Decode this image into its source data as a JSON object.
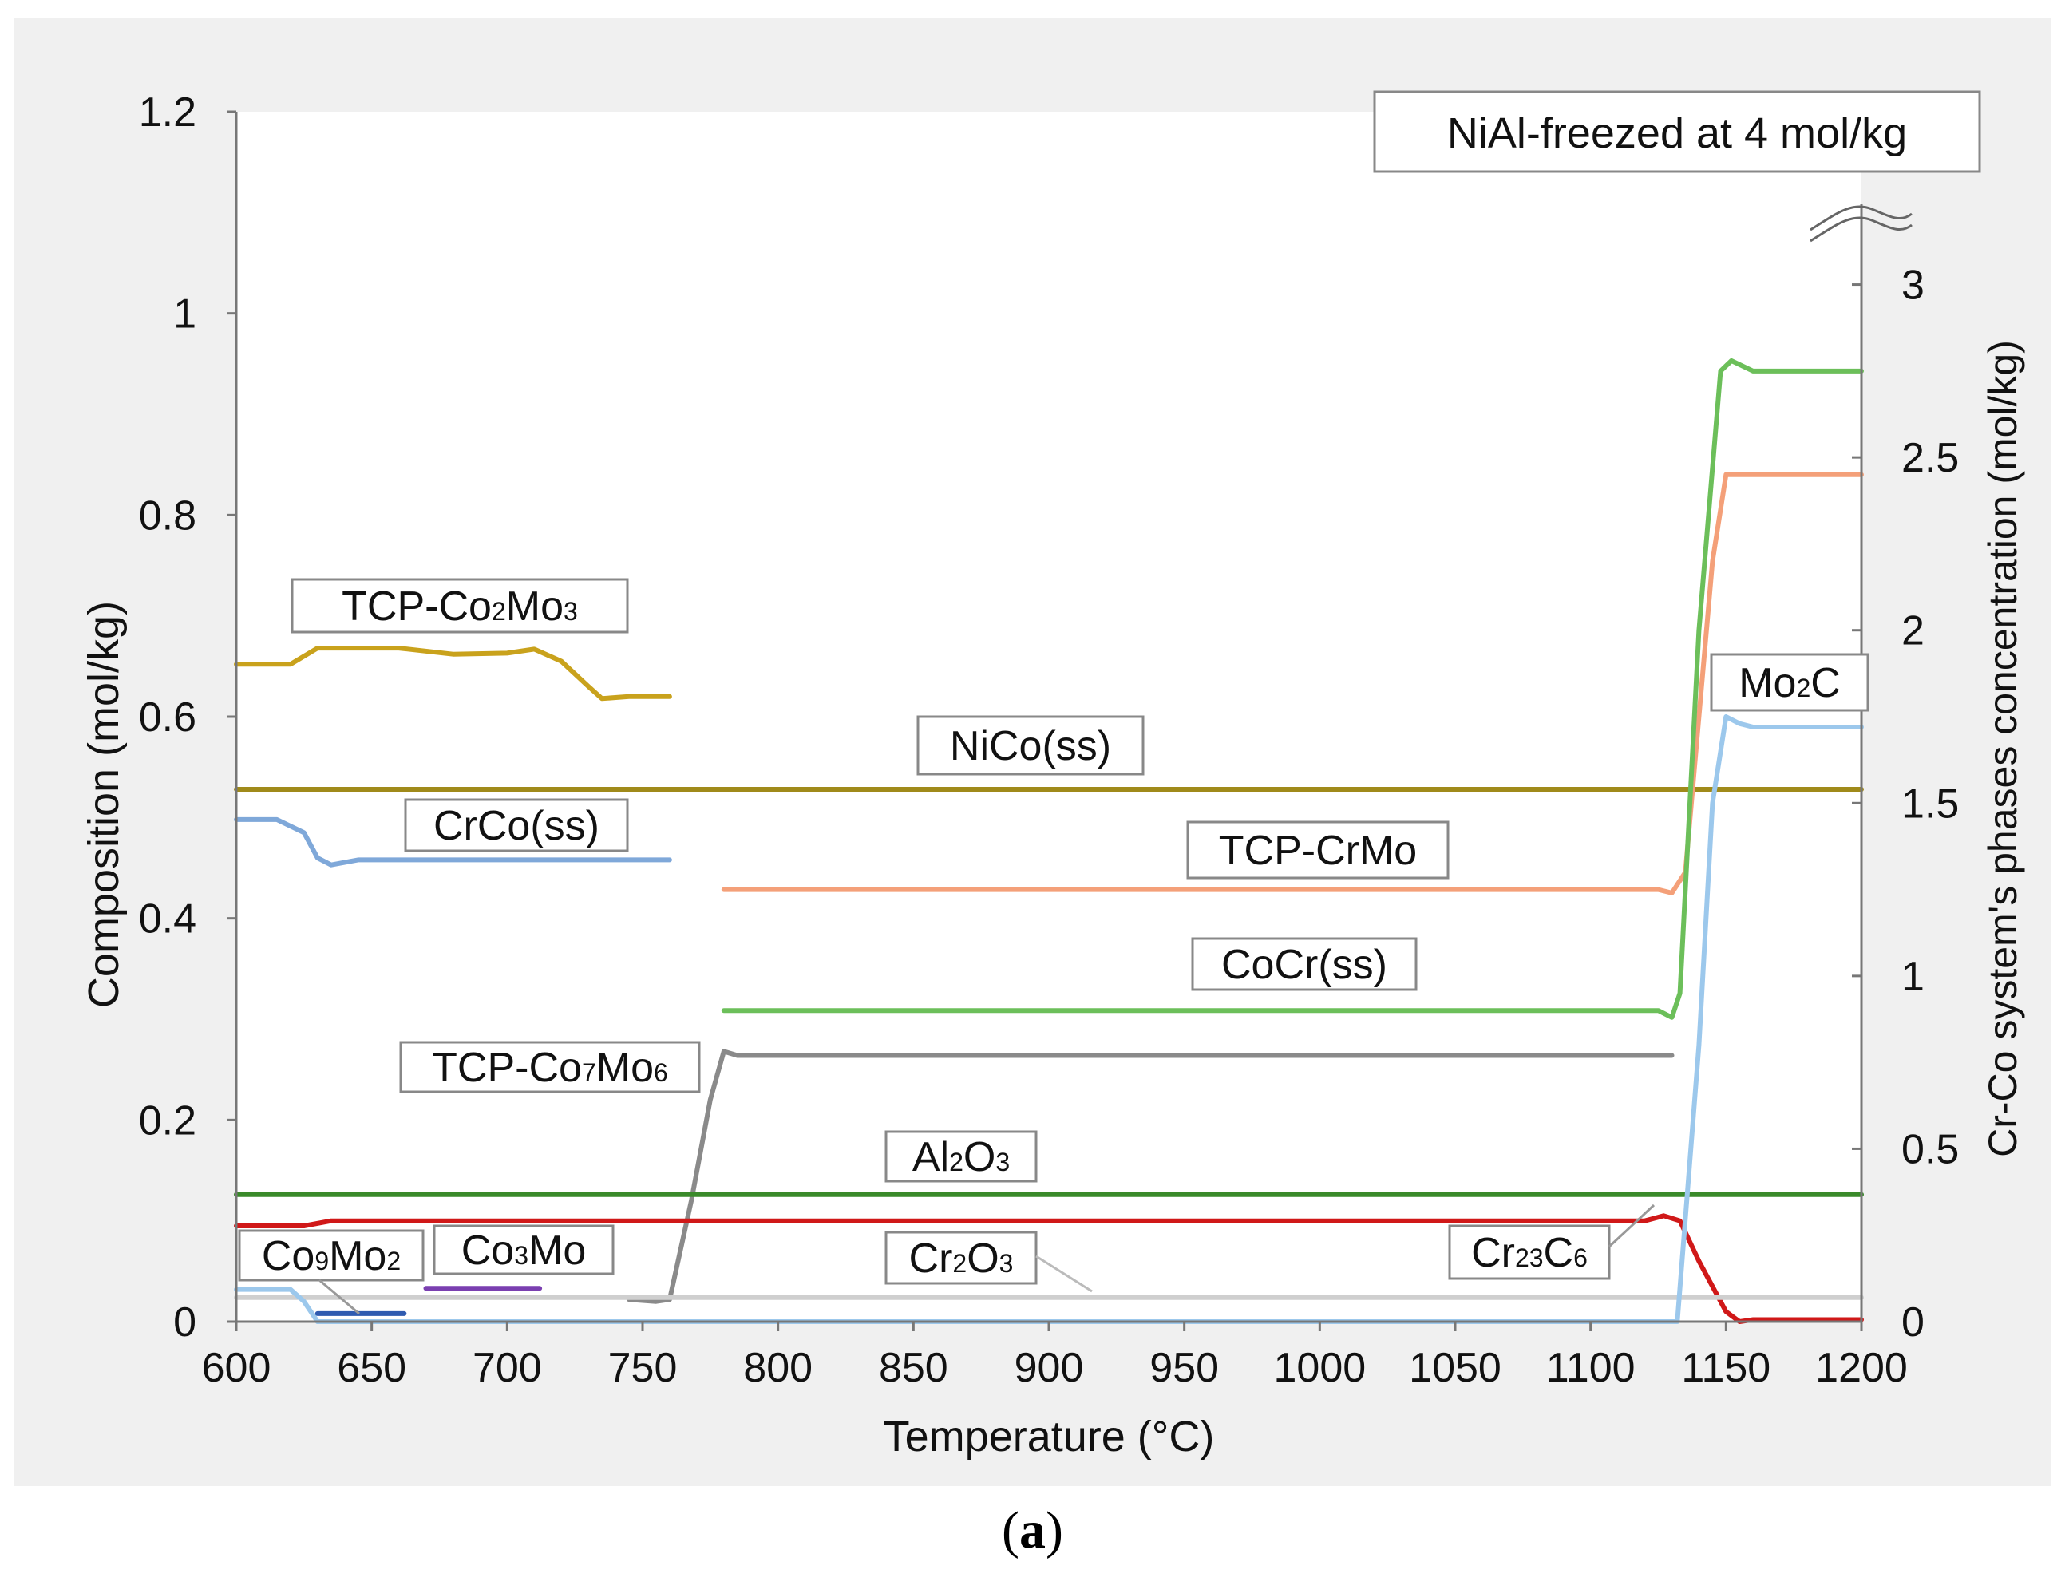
{
  "chart_data": {
    "type": "line",
    "title": "",
    "xlabel": "Temperature (°C)",
    "ylabel": "Composition (mol/kg)",
    "y2label": "Cr-Co system's phases concentration (mol/kg)",
    "xlim": [
      600,
      1200
    ],
    "ylim": [
      0,
      1.2
    ],
    "y2lim": [
      0,
      3.5
    ],
    "xticks": [
      "600",
      "650",
      "700",
      "750",
      "800",
      "850",
      "900",
      "950",
      "1000",
      "1050",
      "1100",
      "1150",
      "1200"
    ],
    "yticks": [
      "0",
      "0.2",
      "0.4",
      "0.6",
      "0.8",
      "1",
      "1.2"
    ],
    "y2ticks": [
      "0",
      "0.5",
      "1",
      "1.5",
      "2",
      "2.5",
      "3"
    ],
    "note": "NiAl-freezed at 4 mol/kg",
    "series": [
      {
        "name": "TCP-Co2Mo3",
        "axis": "left",
        "color": "#c9a21c",
        "x": [
          600,
          620,
          630,
          640,
          660,
          680,
          700,
          710,
          720,
          730,
          735,
          745,
          760
        ],
        "y": [
          0.652,
          0.652,
          0.668,
          0.668,
          0.668,
          0.662,
          0.663,
          0.667,
          0.655,
          0.63,
          0.618,
          0.62,
          0.62
        ]
      },
      {
        "name": "NiCo(ss)",
        "axis": "left",
        "color": "#a08a1a",
        "x": [
          600,
          1200
        ],
        "y": [
          0.528,
          0.528
        ]
      },
      {
        "name": "CrCo(ss)",
        "axis": "left",
        "color": "#7fa8d9",
        "x": [
          600,
          615,
          625,
          630,
          635,
          645,
          760
        ],
        "y": [
          0.498,
          0.498,
          0.485,
          0.46,
          0.453,
          0.458,
          0.458
        ]
      },
      {
        "name": "TCP-CrMo",
        "axis": "right",
        "color": "#f4a079",
        "x": [
          780,
          1125,
          1130,
          1135,
          1145,
          1150,
          1160,
          1200
        ],
        "y": [
          1.25,
          1.25,
          1.24,
          1.3,
          2.2,
          2.45,
          2.45,
          2.45
        ]
      },
      {
        "name": "CoCr(ss)",
        "axis": "right",
        "color": "#6cbf5a",
        "x": [
          780,
          1125,
          1130,
          1133,
          1140,
          1148,
          1152,
          1160,
          1200
        ],
        "y": [
          0.9,
          0.9,
          0.88,
          0.95,
          2.0,
          2.75,
          2.78,
          2.75,
          2.75
        ]
      },
      {
        "name": "TCP-Co7Mo6",
        "axis": "left",
        "color": "#8a8a8a",
        "x": [
          745,
          755,
          760,
          768,
          775,
          780,
          785,
          1130
        ],
        "y": [
          0.022,
          0.02,
          0.022,
          0.12,
          0.22,
          0.268,
          0.264,
          0.264
        ]
      },
      {
        "name": "Al2O3",
        "axis": "left",
        "color": "#3a8a2a",
        "x": [
          600,
          1200
        ],
        "y": [
          0.126,
          0.126
        ]
      },
      {
        "name": "Cr23C6",
        "axis": "left",
        "color": "#d01818",
        "x": [
          600,
          625,
          635,
          1120,
          1127,
          1133,
          1140,
          1150,
          1155,
          1160,
          1200
        ],
        "y": [
          0.095,
          0.095,
          0.1,
          0.1,
          0.105,
          0.1,
          0.06,
          0.01,
          0.0,
          0.002,
          0.002
        ]
      },
      {
        "name": "Cr2O3",
        "axis": "left",
        "color": "#cfcfcf",
        "x": [
          600,
          1200
        ],
        "y": [
          0.024,
          0.024
        ]
      },
      {
        "name": "Co9Mo2",
        "axis": "left",
        "color": "#9cc8ec",
        "x": [
          600,
          615,
          620,
          625,
          630
        ],
        "y": [
          0.032,
          0.032,
          0.032,
          0.02,
          0.0
        ]
      },
      {
        "name": "Co9Mo2-segment",
        "axis": "left",
        "color": "#2f5bb0",
        "x": [
          630,
          662
        ],
        "y": [
          0.008,
          0.008
        ]
      },
      {
        "name": "Co3Mo",
        "axis": "left",
        "color": "#7a3fb0",
        "x": [
          670,
          712
        ],
        "y": [
          0.033,
          0.033
        ]
      },
      {
        "name": "Mo2C",
        "axis": "right",
        "color": "#9cc8ec",
        "x": [
          630,
          1128,
          1132,
          1140,
          1145,
          1150,
          1155,
          1160,
          1200
        ],
        "y": [
          0.0,
          0.0,
          0.0,
          0.8,
          1.5,
          1.75,
          1.73,
          1.72,
          1.72
        ]
      }
    ],
    "labels": [
      {
        "id": "tcp-co2mo3",
        "parts": [
          [
            "TCP-Co",
            ""
          ],
          [
            "2",
            "sub"
          ],
          [
            "Mo",
            ""
          ],
          [
            "3",
            "sub"
          ]
        ]
      },
      {
        "id": "nico",
        "parts": [
          [
            "NiCo(ss)",
            ""
          ]
        ]
      },
      {
        "id": "crco",
        "parts": [
          [
            "CrCo(ss)",
            ""
          ]
        ]
      },
      {
        "id": "tcp-crmo",
        "parts": [
          [
            "TCP-CrMo",
            ""
          ]
        ]
      },
      {
        "id": "cocr",
        "parts": [
          [
            "CoCr(ss)",
            ""
          ]
        ]
      },
      {
        "id": "tcp-co7mo6",
        "parts": [
          [
            "TCP-Co",
            ""
          ],
          [
            "7",
            "sub"
          ],
          [
            "Mo",
            ""
          ],
          [
            "6",
            "sub"
          ]
        ]
      },
      {
        "id": "al2o3",
        "parts": [
          [
            "Al",
            ""
          ],
          [
            "2",
            "sub"
          ],
          [
            "O",
            ""
          ],
          [
            "3",
            "sub"
          ]
        ]
      },
      {
        "id": "co9mo2",
        "parts": [
          [
            "Co",
            ""
          ],
          [
            "9",
            "sub"
          ],
          [
            "Mo",
            ""
          ],
          [
            "2",
            "sub"
          ]
        ]
      },
      {
        "id": "co3mo",
        "parts": [
          [
            "Co",
            ""
          ],
          [
            "3",
            "sub"
          ],
          [
            "Mo",
            ""
          ]
        ]
      },
      {
        "id": "cr2o3",
        "parts": [
          [
            "Cr",
            ""
          ],
          [
            "2",
            "sub"
          ],
          [
            "O",
            ""
          ],
          [
            "3",
            "sub"
          ]
        ]
      },
      {
        "id": "cr23c6",
        "parts": [
          [
            "Cr",
            ""
          ],
          [
            "23",
            "sub"
          ],
          [
            "C",
            ""
          ],
          [
            "6",
            "sub"
          ]
        ]
      },
      {
        "id": "mo2c",
        "parts": [
          [
            "Mo",
            ""
          ],
          [
            "2",
            "sub"
          ],
          [
            "C",
            ""
          ]
        ]
      }
    ]
  },
  "caption": {
    "open": "(",
    "label": "a",
    "close": ")"
  }
}
